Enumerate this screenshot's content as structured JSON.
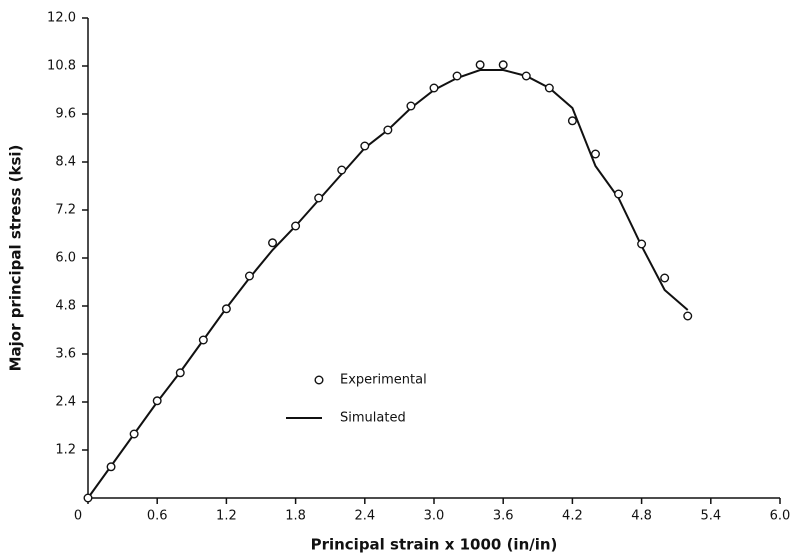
{
  "chart_data": {
    "type": "scatter_line",
    "x_label": "Principal strain x 1000 (in/in)",
    "y_label": "Major principal stress (ksi)",
    "xlim": [
      0,
      6
    ],
    "ylim": [
      0,
      12
    ],
    "xticks": [
      0,
      0.6,
      1.2,
      1.8,
      2.4,
      {
        "value": 3,
        "label": "3.0"
      },
      3.6,
      4.2,
      4.8,
      5.4,
      {
        "value": 6,
        "label": "6.0"
      }
    ],
    "yticks": [
      1.2,
      2.4,
      3.6,
      4.8,
      {
        "value": 6,
        "label": "6.0"
      },
      7.2,
      8.4,
      9.6,
      10.8,
      {
        "value": 12,
        "label": "12.0"
      }
    ],
    "grid": false,
    "series": [
      {
        "name": "Experimental",
        "color": "#111111",
        "mode": "markers",
        "x": [
          0,
          0.2,
          0.4,
          0.6,
          0.8,
          1.0,
          1.2,
          1.4,
          1.6,
          1.8,
          2.0,
          2.2,
          2.4,
          2.6,
          2.8,
          3.0,
          3.2,
          3.4,
          3.6,
          3.8,
          4.0,
          4.2,
          4.4,
          4.6,
          4.8,
          5.0,
          5.2
        ],
        "values": [
          0,
          0.78,
          1.6,
          2.43,
          3.13,
          3.95,
          4.73,
          5.55,
          6.38,
          6.8,
          7.5,
          8.2,
          8.8,
          9.2,
          9.8,
          10.25,
          10.55,
          10.83,
          10.83,
          10.55,
          10.25,
          9.43,
          8.6,
          7.6,
          6.35,
          5.5,
          4.55
        ]
      },
      {
        "name": "Simulated",
        "color": "#111111",
        "mode": "lines",
        "x": [
          0,
          0.2,
          0.4,
          0.6,
          0.8,
          1.0,
          1.2,
          1.4,
          1.6,
          1.8,
          2.0,
          2.2,
          2.4,
          2.6,
          2.8,
          3.0,
          3.2,
          3.4,
          3.6,
          3.8,
          4.0,
          4.2,
          4.4,
          4.6,
          4.8,
          5.0,
          5.2
        ],
        "values": [
          0,
          0.8,
          1.6,
          2.4,
          3.15,
          3.95,
          4.75,
          5.5,
          6.2,
          6.8,
          7.45,
          8.1,
          8.75,
          9.2,
          9.75,
          10.2,
          10.5,
          10.7,
          10.7,
          10.55,
          10.25,
          9.75,
          8.3,
          7.5,
          6.3,
          5.2,
          4.7
        ]
      }
    ]
  }
}
